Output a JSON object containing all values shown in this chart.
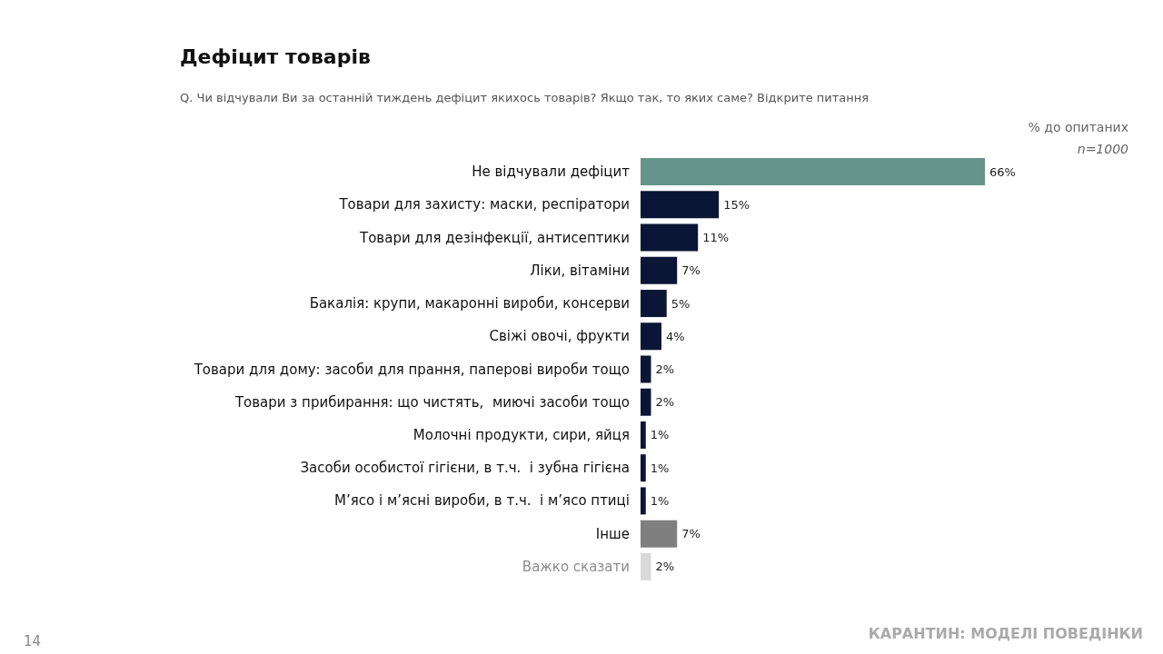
{
  "chart_data": {
    "type": "bar",
    "orientation": "horizontal",
    "title": "Дефіцит товарів",
    "subtitle": "Q. Чи відчували Ви за останній тиждень дефіцит якихось товарів? Якщо так, то яких саме? Відкрите питання",
    "categories": [
      "Не відчували дефіцит",
      "Товари для захисту: маски, респіратори",
      "Товари для дезінфекції, антисептики",
      "Ліки, вітаміни",
      "Бакалія: крупи, макаронні вироби, консерви",
      "Свіжі овочі, фрукти",
      "Товари для дому: засоби для прання, паперові вироби тощо",
      "Товари з прибирання: що чистять,  миючі засоби тощо",
      "Молочні продукти, сири, яйця",
      "Засоби особистої гігієни, в т.ч.  і зубна гігієна",
      "М’ясо і м’ясні вироби, в т.ч.  і м’ясо птиці",
      "Інше",
      "Важко сказати"
    ],
    "values": [
      66,
      15,
      11,
      7,
      5,
      4,
      2,
      2,
      1,
      1,
      1,
      7,
      2
    ],
    "value_labels": [
      "66%",
      "15%",
      "11%",
      "7%",
      "5%",
      "4%",
      "2%",
      "2%",
      "1%",
      "1%",
      "1%",
      "7%",
      "2%"
    ],
    "colors": [
      "#66948a",
      "#0b1535",
      "#0b1535",
      "#0b1535",
      "#0b1535",
      "#0b1535",
      "#0b1535",
      "#0b1535",
      "#0b1535",
      "#0b1535",
      "#0b1535",
      "#7f7f7f",
      "#d9d9d9"
    ],
    "annotations": [
      "% до опитаних",
      "n=1000",
      "14",
      "КАРАНТИН: МОДЕЛІ ПОВЕДІНКИ"
    ]
  }
}
